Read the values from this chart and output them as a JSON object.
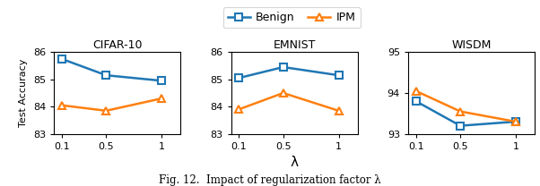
{
  "x": [
    0.1,
    0.5,
    1
  ],
  "x_ticks": [
    0.1,
    0.5,
    1
  ],
  "x_tick_labels": [
    "0.1",
    "0.5",
    "1"
  ],
  "datasets": [
    {
      "title": "CIFAR-10",
      "benign": [
        85.75,
        85.15,
        84.95
      ],
      "ipm": [
        84.05,
        83.85,
        84.3
      ],
      "ylim": [
        83,
        86
      ],
      "yticks": [
        83,
        84,
        85,
        86
      ]
    },
    {
      "title": "EMNIST",
      "benign": [
        85.05,
        85.45,
        85.15
      ],
      "ipm": [
        83.9,
        84.5,
        83.85
      ],
      "ylim": [
        83,
        86
      ],
      "yticks": [
        83,
        84,
        85,
        86
      ]
    },
    {
      "title": "WISDM",
      "benign": [
        93.8,
        93.2,
        93.3
      ],
      "ipm": [
        94.05,
        93.55,
        93.3
      ],
      "ylim": [
        93,
        95
      ],
      "yticks": [
        93,
        94,
        95
      ]
    }
  ],
  "xlabel": "λ",
  "ylabel": "Test Accuracy",
  "benign_color": "#1f77b4",
  "ipm_color": "#ff7f0e",
  "linewidth": 1.8,
  "markersize": 6,
  "legend_label_benign": "Benign",
  "legend_label_ipm": "IPM",
  "caption": "Fig. 12.  Impact of regularization factor λ"
}
